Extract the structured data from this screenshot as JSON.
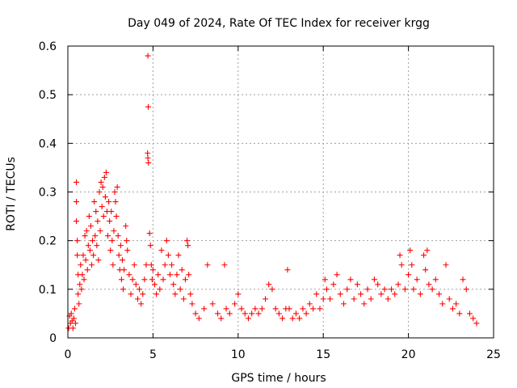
{
  "chart_data": {
    "type": "scatter",
    "title": "Day 049 of 2024, Rate Of TEC Index for receiver krgg",
    "xlabel": "GPS time / hours",
    "ylabel": "ROTI / TECUs",
    "xlim": [
      0,
      25
    ],
    "ylim": [
      0,
      0.6
    ],
    "xticks": [
      "0",
      "5",
      "10",
      "15",
      "20",
      "25"
    ],
    "yticks": [
      "0",
      "0.1",
      "0.2",
      "0.3",
      "0.4",
      "0.5",
      "0.6"
    ],
    "xtick_values": [
      0,
      5,
      10,
      15,
      20,
      25
    ],
    "ytick_values": [
      0,
      0.1,
      0.2,
      0.3,
      0.4,
      0.5,
      0.6
    ],
    "grid": true,
    "marker": "+",
    "series": [
      {
        "name": "ROTI",
        "color": "#ff0000",
        "points": [
          [
            0.05,
            0.02
          ],
          [
            0.1,
            0.045
          ],
          [
            0.15,
            0.03
          ],
          [
            0.2,
            0.05
          ],
          [
            0.25,
            0.035
          ],
          [
            0.3,
            0.02
          ],
          [
            0.35,
            0.04
          ],
          [
            0.4,
            0.06
          ],
          [
            0.45,
            0.03
          ],
          [
            0.5,
            0.32
          ],
          [
            0.5,
            0.28
          ],
          [
            0.5,
            0.24
          ],
          [
            0.55,
            0.2
          ],
          [
            0.55,
            0.17
          ],
          [
            0.6,
            0.13
          ],
          [
            0.6,
            0.09
          ],
          [
            0.65,
            0.07
          ],
          [
            0.7,
            0.11
          ],
          [
            0.75,
            0.15
          ],
          [
            0.8,
            0.1
          ],
          [
            0.85,
            0.13
          ],
          [
            0.9,
            0.17
          ],
          [
            0.95,
            0.12
          ],
          [
            1.0,
            0.21
          ],
          [
            1.05,
            0.16
          ],
          [
            1.1,
            0.22
          ],
          [
            1.15,
            0.14
          ],
          [
            1.2,
            0.19
          ],
          [
            1.25,
            0.25
          ],
          [
            1.3,
            0.18
          ],
          [
            1.35,
            0.23
          ],
          [
            1.4,
            0.15
          ],
          [
            1.45,
            0.2
          ],
          [
            1.5,
            0.17
          ],
          [
            1.55,
            0.28
          ],
          [
            1.6,
            0.21
          ],
          [
            1.65,
            0.26
          ],
          [
            1.7,
            0.19
          ],
          [
            1.75,
            0.24
          ],
          [
            1.8,
            0.16
          ],
          [
            1.85,
            0.3
          ],
          [
            1.9,
            0.22
          ],
          [
            1.95,
            0.32
          ],
          [
            2.0,
            0.27
          ],
          [
            2.05,
            0.31
          ],
          [
            2.1,
            0.25
          ],
          [
            2.15,
            0.33
          ],
          [
            2.2,
            0.29
          ],
          [
            2.25,
            0.34
          ],
          [
            2.3,
            0.26
          ],
          [
            2.35,
            0.21
          ],
          [
            2.4,
            0.28
          ],
          [
            2.45,
            0.24
          ],
          [
            2.5,
            0.18
          ],
          [
            2.55,
            0.26
          ],
          [
            2.6,
            0.2
          ],
          [
            2.65,
            0.15
          ],
          [
            2.7,
            0.22
          ],
          [
            2.75,
            0.3
          ],
          [
            2.8,
            0.28
          ],
          [
            2.85,
            0.25
          ],
          [
            2.9,
            0.31
          ],
          [
            2.95,
            0.21
          ],
          [
            3.0,
            0.17
          ],
          [
            3.05,
            0.14
          ],
          [
            3.1,
            0.19
          ],
          [
            3.15,
            0.12
          ],
          [
            3.2,
            0.16
          ],
          [
            3.25,
            0.1
          ],
          [
            3.3,
            0.14
          ],
          [
            3.4,
            0.23
          ],
          [
            3.45,
            0.2
          ],
          [
            3.5,
            0.18
          ],
          [
            3.6,
            0.13
          ],
          [
            3.7,
            0.09
          ],
          [
            3.8,
            0.12
          ],
          [
            3.9,
            0.15
          ],
          [
            4.0,
            0.11
          ],
          [
            4.1,
            0.08
          ],
          [
            4.2,
            0.1
          ],
          [
            4.3,
            0.07
          ],
          [
            4.4,
            0.09
          ],
          [
            4.5,
            0.12
          ],
          [
            4.6,
            0.15
          ],
          [
            4.7,
            0.58
          ],
          [
            4.72,
            0.475
          ],
          [
            4.68,
            0.38
          ],
          [
            4.7,
            0.37
          ],
          [
            4.73,
            0.36
          ],
          [
            4.8,
            0.215
          ],
          [
            4.85,
            0.19
          ],
          [
            4.9,
            0.15
          ],
          [
            4.95,
            0.12
          ],
          [
            5.0,
            0.14
          ],
          [
            5.1,
            0.11
          ],
          [
            5.2,
            0.09
          ],
          [
            5.3,
            0.13
          ],
          [
            5.4,
            0.1
          ],
          [
            5.5,
            0.18
          ],
          [
            5.6,
            0.12
          ],
          [
            5.7,
            0.15
          ],
          [
            5.8,
            0.2
          ],
          [
            5.9,
            0.17
          ],
          [
            6.0,
            0.13
          ],
          [
            6.1,
            0.15
          ],
          [
            6.2,
            0.11
          ],
          [
            6.3,
            0.09
          ],
          [
            6.4,
            0.13
          ],
          [
            6.5,
            0.17
          ],
          [
            6.6,
            0.1
          ],
          [
            6.7,
            0.14
          ],
          [
            6.8,
            0.08
          ],
          [
            6.9,
            0.12
          ],
          [
            7.0,
            0.2
          ],
          [
            7.05,
            0.19
          ],
          [
            7.1,
            0.13
          ],
          [
            7.2,
            0.09
          ],
          [
            7.3,
            0.07
          ],
          [
            7.5,
            0.05
          ],
          [
            7.7,
            0.04
          ],
          [
            8.0,
            0.06
          ],
          [
            8.2,
            0.15
          ],
          [
            8.5,
            0.07
          ],
          [
            8.8,
            0.05
          ],
          [
            9.0,
            0.04
          ],
          [
            9.2,
            0.15
          ],
          [
            9.3,
            0.06
          ],
          [
            9.5,
            0.05
          ],
          [
            9.8,
            0.07
          ],
          [
            10.0,
            0.09
          ],
          [
            10.2,
            0.06
          ],
          [
            10.4,
            0.05
          ],
          [
            10.6,
            0.04
          ],
          [
            10.8,
            0.05
          ],
          [
            11.0,
            0.06
          ],
          [
            11.2,
            0.05
          ],
          [
            11.4,
            0.06
          ],
          [
            11.6,
            0.08
          ],
          [
            11.8,
            0.11
          ],
          [
            12.0,
            0.1
          ],
          [
            12.2,
            0.06
          ],
          [
            12.4,
            0.05
          ],
          [
            12.6,
            0.04
          ],
          [
            12.8,
            0.06
          ],
          [
            12.9,
            0.14
          ],
          [
            13.0,
            0.06
          ],
          [
            13.2,
            0.04
          ],
          [
            13.4,
            0.05
          ],
          [
            13.6,
            0.04
          ],
          [
            13.8,
            0.06
          ],
          [
            14.0,
            0.05
          ],
          [
            14.2,
            0.07
          ],
          [
            14.4,
            0.06
          ],
          [
            14.6,
            0.09
          ],
          [
            14.8,
            0.06
          ],
          [
            15.0,
            0.08
          ],
          [
            15.1,
            0.12
          ],
          [
            15.2,
            0.1
          ],
          [
            15.4,
            0.08
          ],
          [
            15.6,
            0.11
          ],
          [
            15.8,
            0.13
          ],
          [
            16.0,
            0.09
          ],
          [
            16.2,
            0.07
          ],
          [
            16.4,
            0.1
          ],
          [
            16.6,
            0.12
          ],
          [
            16.8,
            0.08
          ],
          [
            17.0,
            0.11
          ],
          [
            17.2,
            0.09
          ],
          [
            17.4,
            0.07
          ],
          [
            17.6,
            0.1
          ],
          [
            17.8,
            0.08
          ],
          [
            18.0,
            0.12
          ],
          [
            18.2,
            0.11
          ],
          [
            18.4,
            0.09
          ],
          [
            18.6,
            0.1
          ],
          [
            18.8,
            0.08
          ],
          [
            19.0,
            0.1
          ],
          [
            19.2,
            0.09
          ],
          [
            19.4,
            0.11
          ],
          [
            19.5,
            0.17
          ],
          [
            19.6,
            0.15
          ],
          [
            19.8,
            0.1
          ],
          [
            20.0,
            0.13
          ],
          [
            20.1,
            0.18
          ],
          [
            20.2,
            0.15
          ],
          [
            20.3,
            0.1
          ],
          [
            20.5,
            0.12
          ],
          [
            20.7,
            0.09
          ],
          [
            20.9,
            0.17
          ],
          [
            21.0,
            0.14
          ],
          [
            21.1,
            0.18
          ],
          [
            21.2,
            0.11
          ],
          [
            21.4,
            0.1
          ],
          [
            21.6,
            0.12
          ],
          [
            21.8,
            0.09
          ],
          [
            22.0,
            0.07
          ],
          [
            22.2,
            0.15
          ],
          [
            22.4,
            0.08
          ],
          [
            22.6,
            0.06
          ],
          [
            22.8,
            0.07
          ],
          [
            23.0,
            0.05
          ],
          [
            23.2,
            0.12
          ],
          [
            23.4,
            0.1
          ],
          [
            23.6,
            0.05
          ],
          [
            23.8,
            0.04
          ],
          [
            24.0,
            0.03
          ]
        ]
      }
    ]
  }
}
